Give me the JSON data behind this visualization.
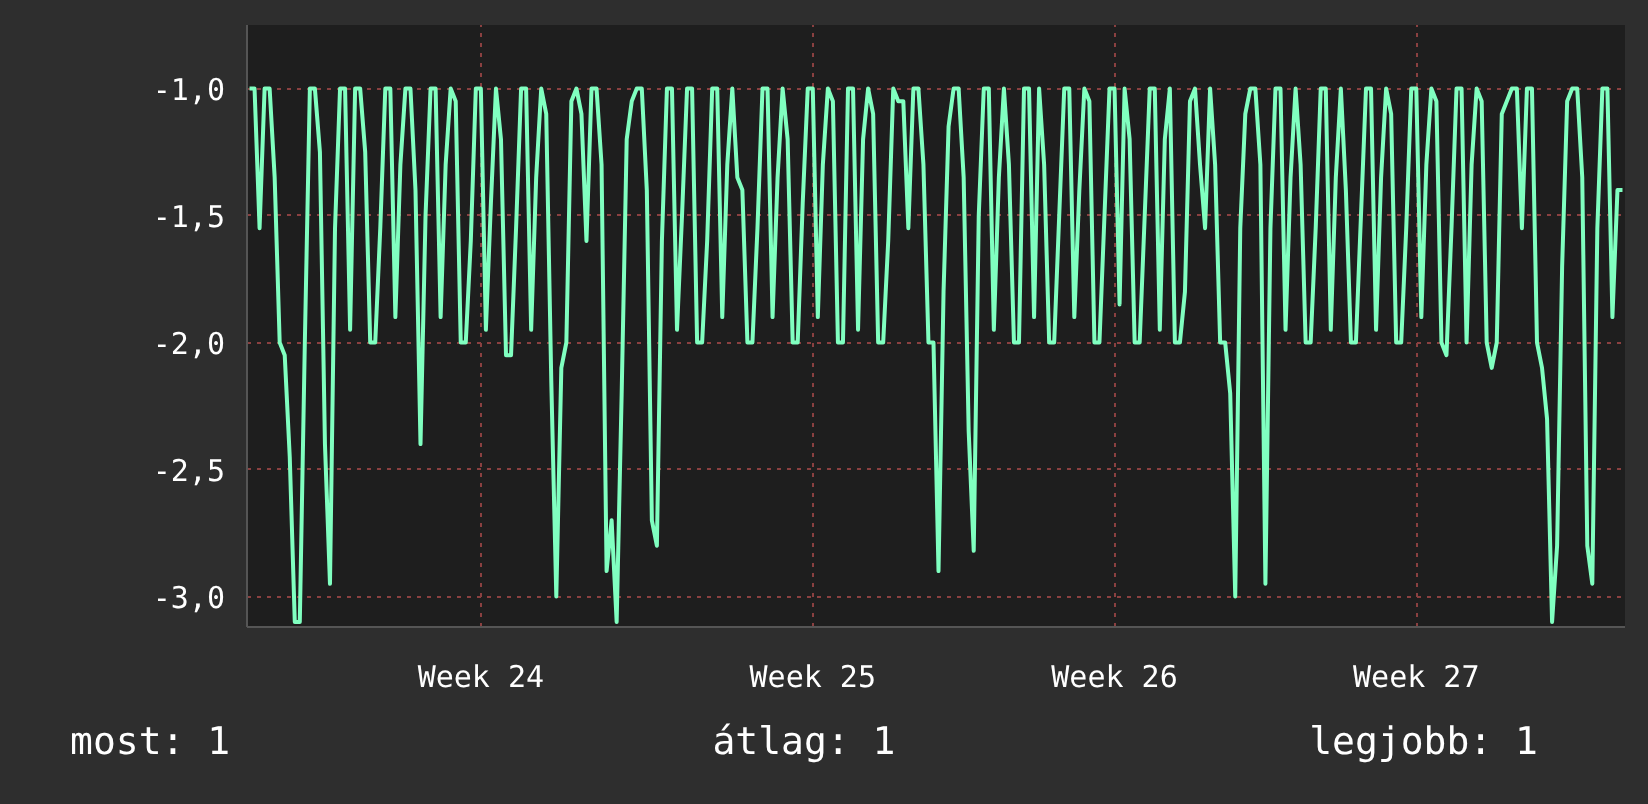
{
  "chart_data": {
    "type": "line",
    "ylim": [
      -3.12,
      -0.75
    ],
    "categories": [
      null,
      null,
      null,
      null,
      null,
      null,
      null,
      null,
      null,
      null,
      null,
      null,
      null,
      null,
      null,
      null,
      null,
      null,
      null,
      null,
      null,
      null,
      null,
      null,
      null,
      null,
      null,
      null,
      null,
      null,
      null,
      null,
      null,
      null,
      null,
      null,
      null,
      null,
      null,
      null,
      null,
      null,
      null,
      null,
      null,
      null,
      "Week 24",
      null,
      null,
      null,
      null,
      null,
      null,
      null,
      null,
      null,
      null,
      null,
      null,
      null,
      null,
      null,
      null,
      null,
      null,
      null,
      null,
      null,
      null,
      null,
      null,
      null,
      null,
      null,
      null,
      null,
      null,
      null,
      null,
      null,
      null,
      null,
      null,
      null,
      null,
      null,
      null,
      null,
      null,
      null,
      null,
      null,
      null,
      null,
      null,
      null,
      null,
      null,
      null,
      null,
      null,
      null,
      null,
      null,
      null,
      null,
      null,
      null,
      null,
      null,
      null,
      null,
      "Week 25",
      null,
      null,
      null,
      null,
      null,
      null,
      null,
      null,
      null,
      null,
      null,
      null,
      null,
      null,
      null,
      null,
      null,
      null,
      null,
      null,
      null,
      null,
      null,
      null,
      null,
      null,
      null,
      null,
      null,
      null,
      null,
      null,
      null,
      null,
      null,
      null,
      null,
      null,
      null,
      null,
      null,
      null,
      null,
      null,
      null,
      null,
      null,
      null,
      null,
      null,
      null,
      null,
      null,
      null,
      null,
      null,
      null,
      null,
      null,
      "Week 26",
      null,
      null,
      null,
      null,
      null,
      null,
      null,
      null,
      null,
      null,
      null,
      null,
      null,
      null,
      null,
      null,
      null,
      null,
      null,
      null,
      null,
      null,
      null,
      null,
      null,
      null,
      null,
      null,
      null,
      null,
      null,
      null,
      null,
      null,
      null,
      null,
      null,
      null,
      null,
      null,
      null,
      null,
      null,
      null,
      null,
      null,
      null,
      null,
      null,
      null,
      null,
      null,
      null,
      null,
      null,
      null,
      null,
      null,
      null,
      "Week 27",
      null,
      null,
      null,
      null,
      null,
      null,
      null,
      null,
      null,
      null,
      null,
      null,
      null,
      null,
      null,
      null,
      null,
      null,
      null,
      null,
      null,
      null,
      null,
      null,
      null,
      null,
      null,
      null,
      null,
      null,
      null,
      null,
      null,
      null,
      null,
      null,
      null,
      null,
      null,
      null,
      null
    ],
    "yticks": [
      {
        "value": -1,
        "label": "-1,0"
      },
      {
        "value": -1.5,
        "label": "-1,5"
      },
      {
        "value": -2,
        "label": "-2,0"
      },
      {
        "value": -2.5,
        "label": "-2,5"
      },
      {
        "value": -3,
        "label": "-3,0"
      }
    ],
    "grid": true,
    "marker": "none",
    "line_style": "solid",
    "annotations": [
      "most: 1",
      "átlag: 1",
      "legjobb: 1"
    ],
    "series": [
      {
        "color": "#80ffc0",
        "values": [
          -1.0,
          -1.0,
          -1.55,
          -1.0,
          -1.0,
          -1.35,
          -2.0,
          -2.05,
          -2.45,
          -3.1,
          -3.1,
          -2.0,
          -1.0,
          -1.0,
          -1.25,
          -2.4,
          -2.95,
          -1.55,
          -1.0,
          -1.0,
          -1.95,
          -1.0,
          -1.0,
          -1.25,
          -2.0,
          -2.0,
          -1.55,
          -1.0,
          -1.0,
          -1.9,
          -1.3,
          -1.0,
          -1.0,
          -1.4,
          -2.4,
          -1.5,
          -1.0,
          -1.0,
          -1.9,
          -1.3,
          -1.0,
          -1.05,
          -2.0,
          -2.0,
          -1.6,
          -1.0,
          -1.0,
          -1.95,
          -1.45,
          -1.0,
          -1.2,
          -2.05,
          -2.05,
          -1.55,
          -1.0,
          -1.0,
          -1.95,
          -1.35,
          -1.0,
          -1.1,
          -2.15,
          -3.0,
          -2.1,
          -2.0,
          -1.05,
          -1.0,
          -1.1,
          -1.6,
          -1.0,
          -1.0,
          -1.3,
          -2.9,
          -2.7,
          -3.1,
          -2.2,
          -1.2,
          -1.05,
          -1.0,
          -1.0,
          -1.4,
          -2.7,
          -2.8,
          -1.6,
          -1.0,
          -1.0,
          -1.95,
          -1.5,
          -1.0,
          -1.0,
          -2.0,
          -2.0,
          -1.6,
          -1.0,
          -1.0,
          -1.9,
          -1.3,
          -1.0,
          -1.35,
          -1.4,
          -2.0,
          -2.0,
          -1.55,
          -1.0,
          -1.0,
          -1.9,
          -1.35,
          -1.0,
          -1.2,
          -2.0,
          -2.0,
          -1.45,
          -1.0,
          -1.0,
          -1.9,
          -1.3,
          -1.0,
          -1.05,
          -2.0,
          -2.0,
          -1.0,
          -1.0,
          -1.95,
          -1.2,
          -1.0,
          -1.1,
          -2.0,
          -2.0,
          -1.6,
          -1.0,
          -1.05,
          -1.05,
          -1.55,
          -1.0,
          -1.0,
          -1.3,
          -2.0,
          -2.0,
          -2.9,
          -1.8,
          -1.15,
          -1.0,
          -1.0,
          -1.35,
          -2.35,
          -2.82,
          -1.5,
          -1.0,
          -1.0,
          -1.95,
          -1.35,
          -1.0,
          -1.3,
          -2.0,
          -2.0,
          -1.0,
          -1.0,
          -1.9,
          -1.0,
          -1.3,
          -2.0,
          -2.0,
          -1.5,
          -1.0,
          -1.0,
          -1.9,
          -1.4,
          -1.0,
          -1.05,
          -2.0,
          -2.0,
          -1.5,
          -1.0,
          -1.0,
          -1.85,
          -1.0,
          -1.2,
          -2.0,
          -2.0,
          -1.5,
          -1.0,
          -1.0,
          -1.95,
          -1.2,
          -1.0,
          -2.0,
          -2.0,
          -1.8,
          -1.05,
          -1.0,
          -1.3,
          -1.55,
          -1.0,
          -1.3,
          -2.0,
          -2.0,
          -2.2,
          -3.0,
          -1.55,
          -1.1,
          -1.0,
          -1.0,
          -1.3,
          -2.95,
          -1.55,
          -1.0,
          -1.0,
          -1.95,
          -1.35,
          -1.0,
          -1.3,
          -2.0,
          -2.0,
          -1.55,
          -1.0,
          -1.0,
          -1.95,
          -1.35,
          -1.0,
          -1.4,
          -2.0,
          -2.0,
          -1.5,
          -1.0,
          -1.0,
          -1.95,
          -1.35,
          -1.0,
          -1.1,
          -2.0,
          -2.0,
          -1.55,
          -1.0,
          -1.0,
          -1.9,
          -1.3,
          -1.0,
          -1.05,
          -2.0,
          -2.05,
          -1.55,
          -1.0,
          -1.0,
          -2.0,
          -1.3,
          -1.0,
          -1.05,
          -2.0,
          -2.1,
          -2.0,
          -1.1,
          -1.05,
          -1.0,
          -1.0,
          -1.55,
          -1.0,
          -1.0,
          -2.0,
          -2.1,
          -2.3,
          -3.1,
          -2.8,
          -1.7,
          -1.05,
          -1.0,
          -1.0,
          -1.35,
          -2.8,
          -2.95,
          -1.55,
          -1.0,
          -1.0,
          -1.9,
          -1.4,
          -1.4
        ]
      }
    ]
  }
}
